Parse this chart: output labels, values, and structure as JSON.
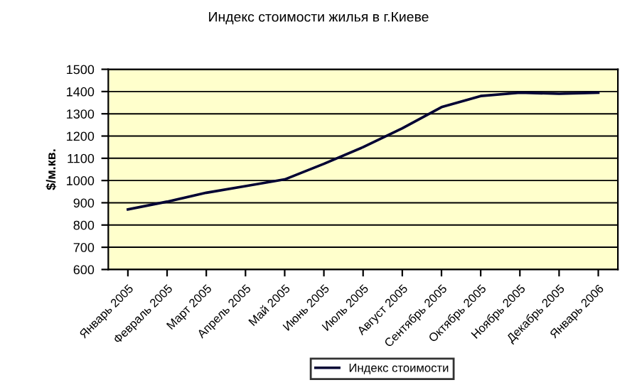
{
  "chart_data": {
    "type": "line",
    "title": "Индекс стоимости жилья в г.Киеве",
    "ylabel": "$/м.кв.",
    "categories": [
      "Январь 2005",
      "Февраль 2005",
      "Март 2005",
      "Апрель 2005",
      "Май 2005",
      "Июнь 2005",
      "Июль 2005",
      "Август 2005",
      "Сентябрь 2005",
      "Октябрь 2005",
      "Ноябрь 2005",
      "Декабрь 2005",
      "Январь 2006"
    ],
    "series": [
      {
        "name": "Индекс стоимости",
        "color": "#000033",
        "values": [
          870,
          905,
          945,
          975,
          1005,
          1075,
          1150,
          1235,
          1330,
          1380,
          1395,
          1390,
          1395
        ]
      }
    ],
    "ylim": [
      600,
      1500
    ],
    "yticks": [
      600,
      700,
      800,
      900,
      1000,
      1100,
      1200,
      1300,
      1400,
      1500
    ],
    "grid": "y",
    "legend": "bottom",
    "marker": "none",
    "line_style": "solid"
  }
}
